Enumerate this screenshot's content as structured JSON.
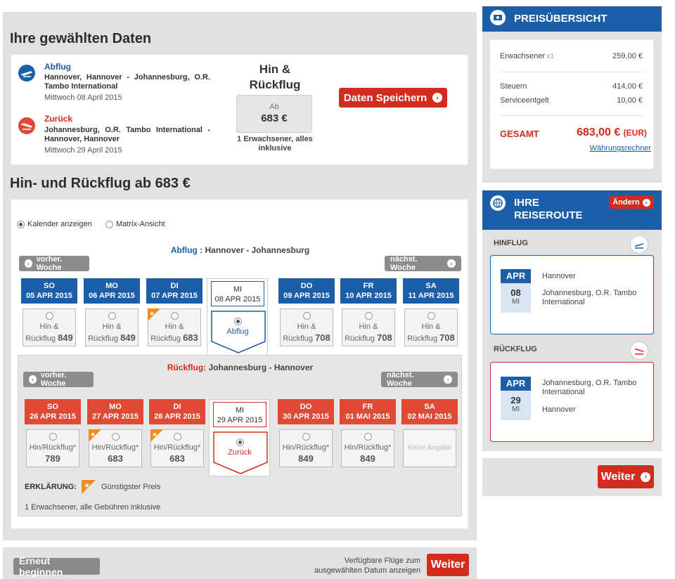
{
  "summary": {
    "title": "Ihre gewählten Daten",
    "outbound": {
      "label": "Abflug",
      "route": "Hannover, Hannover - Johannesburg, O.R. Tambo International",
      "date": "Mittwoch 08 April 2015"
    },
    "return": {
      "label": "Zurück",
      "route": "Johannesburg, O.R. Tambo International - Hannover, Hannover",
      "date": "Mittwoch 29 April 2015"
    },
    "trip_type": "Hin & Rückflug",
    "from_label": "Ab",
    "price": "683 €",
    "price_note": "1 Erwachsener, alles inklusive",
    "save_button": "Daten Speichern"
  },
  "calendar": {
    "title": "Hin- und Rückflug ab 683 €",
    "view_calendar": "Kalender anzeigen",
    "view_matrix": "Matrix-Ansicht",
    "prev_week": "vorher. Woche",
    "next_week": "nächst. Woche",
    "out_label": "Abflug :",
    "out_route": "Hannover - Johannesburg",
    "ret_label": "Rückflug:",
    "ret_route": "Johannesburg - Hannover",
    "out_days": [
      {
        "dow": "SO",
        "date": "05 APR 2015",
        "l1": "Hin &",
        "l2": "Rückflug",
        "price": "849",
        "star": false
      },
      {
        "dow": "MO",
        "date": "06 APR 2015",
        "l1": "Hin &",
        "l2": "Rückflug",
        "price": "849",
        "star": false
      },
      {
        "dow": "DI",
        "date": "07 APR 2015",
        "l1": "Hin &",
        "l2": "Rückflug",
        "price": "683",
        "star": true
      },
      {
        "dow": "MI",
        "date": "08 APR 2015",
        "sel": "Abflug"
      },
      {
        "dow": "DO",
        "date": "09 APR 2015",
        "l1": "Hin &",
        "l2": "Rückflug",
        "price": "708",
        "star": false
      },
      {
        "dow": "FR",
        "date": "10 APR 2015",
        "l1": "Hin &",
        "l2": "Rückflug",
        "price": "708",
        "star": false
      },
      {
        "dow": "SA",
        "date": "11 APR 2015",
        "l1": "Hin &",
        "l2": "Rückflug",
        "price": "708",
        "star": false
      }
    ],
    "ret_days": [
      {
        "dow": "SO",
        "date": "26 APR 2015",
        "l1": "Hin/Rückflug*",
        "price": "789",
        "star": false
      },
      {
        "dow": "MO",
        "date": "27 APR 2015",
        "l1": "Hin/Rückflug*",
        "price": "683",
        "star": true
      },
      {
        "dow": "DI",
        "date": "28 APR 2015",
        "l1": "Hin/Rückflug*",
        "price": "683",
        "star": true
      },
      {
        "dow": "MI",
        "date": "29 APR 2015",
        "sel": "Zurück"
      },
      {
        "dow": "DO",
        "date": "30 APR 2015",
        "l1": "Hin/Rückflug*",
        "price": "849",
        "star": false
      },
      {
        "dow": "FR",
        "date": "01 MAI 2015",
        "l1": "Hin/Rückflug*",
        "price": "849",
        "star": false
      },
      {
        "dow": "SA",
        "date": "02 MAI 2015",
        "na": "Keine Angabe"
      }
    ],
    "legend_label": "ERKLÄRUNG:",
    "legend_text": "Günstigster Preis",
    "footnote": "1 Erwachsener, alle Gebühren inklusive"
  },
  "footer": {
    "restart": "Erneut beginnen",
    "hint1": "Verfügbare Flüge zum",
    "hint2": "ausgewählten Datum anzeigen",
    "next": "Weiter"
  },
  "prices": {
    "title": "PREISÜBERSICHT",
    "adult_label": "Erwachsener",
    "adult_count": "x1",
    "adult_price": "259,00 €",
    "tax_label": "Steuern",
    "tax_price": "414,00 €",
    "fee_label": "Serviceentgelt",
    "fee_price": "10,00 €",
    "total_label": "GESAMT",
    "total_price": "683,00 €",
    "total_cur": "(EUR)",
    "converter": "Währungsrechner"
  },
  "route": {
    "title1": "IHRE",
    "title2": "REISEROUTE",
    "change": "Ändern",
    "out_label": "HINFLUG",
    "out_month": "APR",
    "out_day": "08",
    "out_dow": "MI",
    "out_from": "Hannover",
    "out_to": "Johannesburg, O.R. Tambo International",
    "ret_label": "RÜCKFLUG",
    "ret_month": "APR",
    "ret_day": "29",
    "ret_dow": "MI",
    "ret_from": "Johannesburg, O.R. Tambo International",
    "ret_to": "Hannover",
    "next": "Weiter"
  },
  "colors": {
    "brand_red": "#d52b1e",
    "brand_blue": "#1a5fa8",
    "star": "#f28a1c"
  }
}
